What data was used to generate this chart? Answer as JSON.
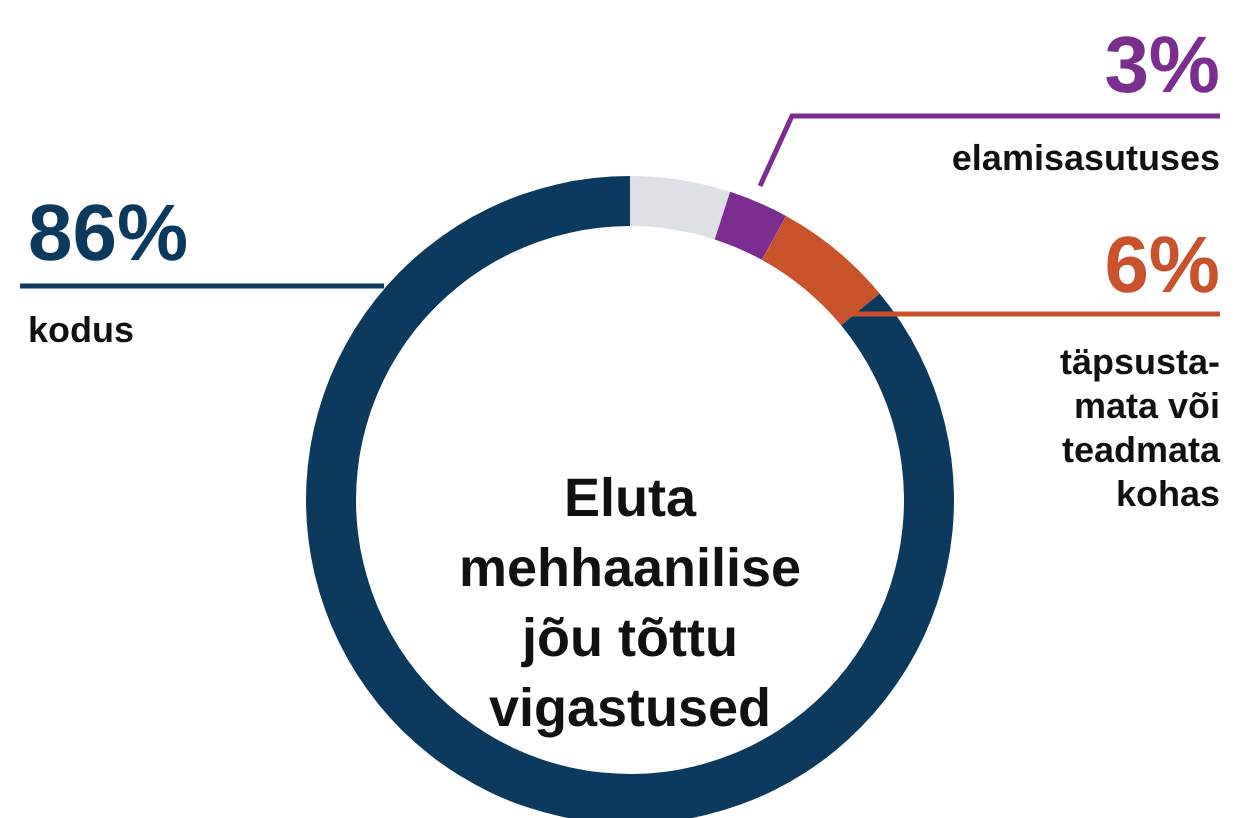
{
  "chart_data": {
    "type": "donut",
    "title": "Eluta mehhaanilise jõu tõttu vigastused",
    "categories": [
      null,
      "elamisasutuses",
      "täpsusta-mata või teadmata kohas",
      "kodus"
    ],
    "values": [
      5,
      3,
      6,
      86
    ],
    "colors": [
      "#dde1e6",
      "#7b2d90",
      "#c9522a",
      "#0b3a5e"
    ],
    "value_labels": [
      null,
      "3%",
      "6%",
      "86%"
    ]
  }
}
